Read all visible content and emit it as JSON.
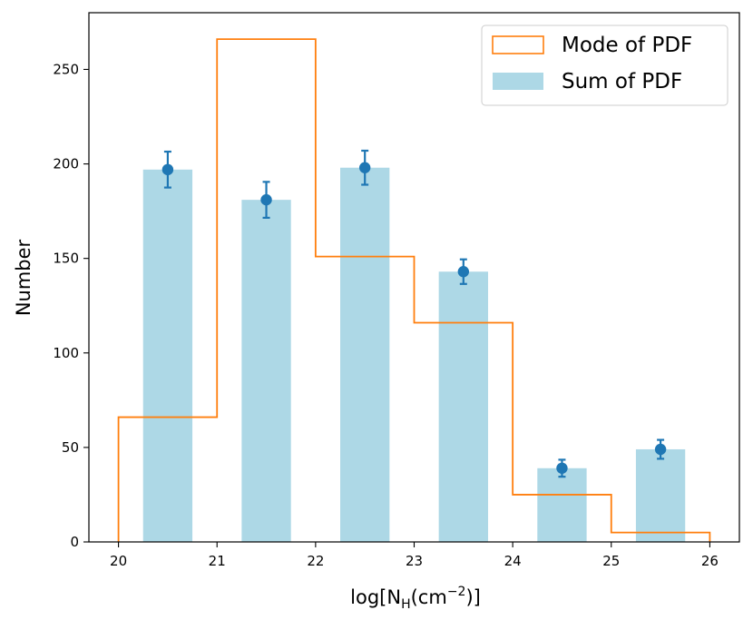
{
  "chart_data": {
    "type": "bar",
    "xlabel": {
      "base": "log[N",
      "sub": "H",
      "mid": "(cm",
      "sup": "−2",
      "end": ")]"
    },
    "ylabel": "Number",
    "xlim": [
      19.7,
      26.3
    ],
    "ylim": [
      0,
      280
    ],
    "xticks": [
      20,
      21,
      22,
      23,
      24,
      25,
      26
    ],
    "yticks": [
      0,
      50,
      100,
      150,
      200,
      250
    ],
    "legend_position": "top-right",
    "colors": {
      "bars": "#add8e6",
      "step": "#ff7f0e",
      "points": "#1f77b4"
    },
    "series": [
      {
        "name": "Sum of PDF",
        "kind": "bar",
        "x": [
          20.5,
          21.5,
          22.5,
          23.5,
          24.5,
          25.5
        ],
        "width": 0.5,
        "values": [
          197,
          181,
          198,
          143,
          39,
          49
        ],
        "errors": [
          9.5,
          9.5,
          9,
          6.5,
          4.5,
          5
        ]
      },
      {
        "name": "Mode of PDF",
        "kind": "step",
        "bin_edges": [
          20,
          21,
          22,
          23,
          24,
          25,
          26
        ],
        "values": [
          66,
          266,
          151,
          116,
          25,
          5
        ]
      }
    ]
  }
}
